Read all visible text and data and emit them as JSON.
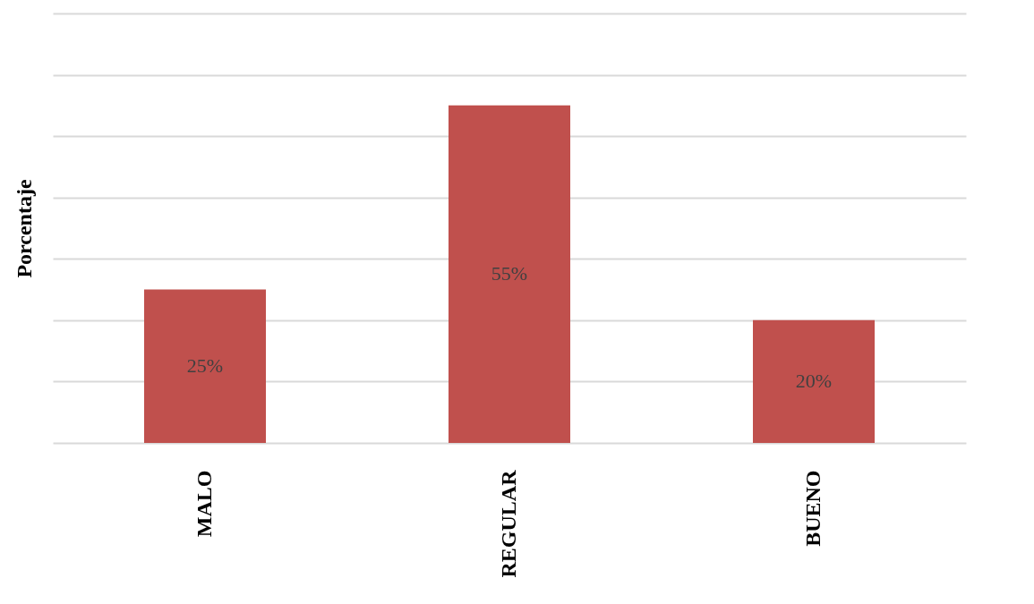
{
  "chart_data": {
    "type": "bar",
    "ylabel": "Porcentaje",
    "categories": [
      "MALO",
      "REGULAR",
      "BUENO"
    ],
    "values": [
      25,
      55,
      20
    ],
    "value_labels": [
      "25%",
      "55%",
      "20%"
    ],
    "color": "#c0504d",
    "ylim": [
      0,
      70
    ],
    "yticks": [
      {
        "value": 0,
        "label": null
      },
      {
        "value": 10,
        "label": null
      },
      {
        "value": 20,
        "label": null
      },
      {
        "value": 30,
        "label": null
      },
      {
        "value": 40,
        "label": null
      },
      {
        "value": 50,
        "label": null
      },
      {
        "value": 60,
        "label": null
      },
      {
        "value": 70,
        "label": null
      }
    ],
    "grid": "y",
    "tick_labels": "x"
  }
}
